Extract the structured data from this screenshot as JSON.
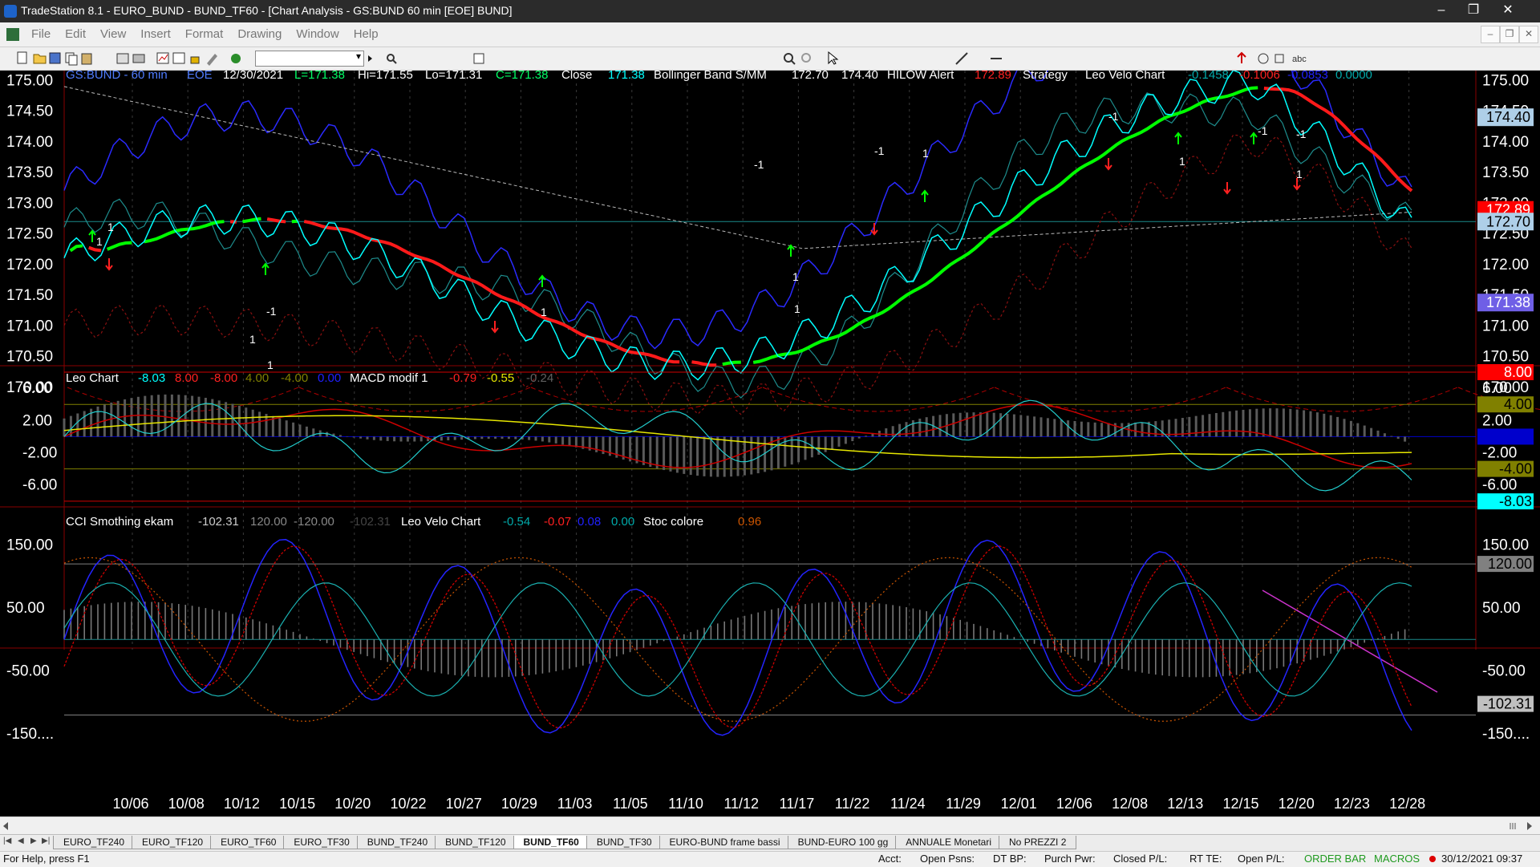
{
  "window": {
    "title": "TradeStation 8.1 - EURO_BUND - BUND_TF60 - [Chart Analysis - GS:BUND  60 min  [EOE] BUND]",
    "minimize": "–",
    "maximize": "❐",
    "close": "✕"
  },
  "menu": [
    "File",
    "Edit",
    "View",
    "Insert",
    "Format",
    "Drawing",
    "Window",
    "Help"
  ],
  "mdi_buttons": [
    "–",
    "❐",
    "✕"
  ],
  "toolbar": {
    "combo_value": "",
    "text_tool": "abc"
  },
  "panel1": {
    "symbol": "GS:BUND - 60 min",
    "session": "EOE",
    "date": "12/30/2021",
    "last": "L=171.38",
    "hi": "Hi=171.55",
    "lo": "Lo=171.31",
    "close": "C=171.38",
    "close_label": "Close",
    "close_value": "171.38",
    "bb_label": "Bollinger Band S/MM",
    "bb_v1": "172.70",
    "bb_v2": "174.40",
    "hilow_label": "HILOW Alert",
    "hilow_value": "172.89",
    "strategy_label": "Strategy",
    "velo_label": "Leo Velo Chart",
    "velo_v1": "-0.1458",
    "velo_v2": "-0.1006",
    "velo_v3": "-0.0853",
    "velo_v4": "0.0000",
    "y_ticks": [
      "175.00",
      "174.50",
      "174.00",
      "173.50",
      "173.00",
      "172.50",
      "172.00",
      "171.50",
      "171.00",
      "170.50",
      "170.00"
    ],
    "price_tags": [
      {
        "text": "174.40",
        "bg": "#aecfe8",
        "fg": "#000"
      },
      {
        "text": "172.89",
        "bg": "#ff0000",
        "fg": "#fff"
      },
      {
        "text": "172.70",
        "bg": "#aecfe8",
        "fg": "#000"
      },
      {
        "text": "171.38",
        "bg": "#6f5fe6",
        "fg": "#fff"
      }
    ],
    "signals": [
      "1",
      "1",
      "1",
      "1",
      "-1",
      "1",
      "-1",
      "1",
      "-1",
      "1",
      "-1",
      "1",
      "1",
      "-1",
      "1",
      "-1"
    ]
  },
  "panel2": {
    "leo_label": "Leo Chart",
    "leo_v1": "-8.03",
    "leo_v2": "8.00",
    "leo_v3": "-8.00",
    "leo_v4": "4.00",
    "leo_v5": "-4.00",
    "leo_v6": "0.00",
    "macd_label": "MACD modif 1",
    "macd_v1": "-0.79",
    "macd_v2": "-0.55",
    "macd_v3": "-0.24",
    "y_ticks": [
      "6.00",
      "2.00",
      "-2.00",
      "-6.00"
    ],
    "tags": [
      {
        "text": "8.00",
        "bg": "#ff0000",
        "fg": "#fff"
      },
      {
        "text": "4.00",
        "bg": "#808000",
        "fg": "#000"
      },
      {
        "text": "0.00",
        "bg": "#0000cc",
        "fg": "#0000cc"
      },
      {
        "text": "-4.00",
        "bg": "#808000",
        "fg": "#000"
      },
      {
        "text": "-8.03",
        "bg": "#00ffff",
        "fg": "#000"
      }
    ]
  },
  "panel3": {
    "cci_label": "CCI Smothing ekam",
    "cci_v1": "-102.31",
    "cci_v2": "120.00",
    "cci_v3": "-120.00",
    "cci_v4": "-102.31",
    "velo_label": "Leo Velo Chart",
    "velo_v1": "-0.54",
    "velo_v2": "-0.07",
    "velo_v3": "0.08",
    "velo_v4": "0.00",
    "stoc_label": "Stoc colore",
    "stoc_v1": "0.96",
    "y_ticks": [
      "150.00",
      "50.00",
      "-50.00",
      "-150...."
    ],
    "tags": [
      {
        "text": "120.00",
        "bg": "#808080",
        "fg": "#000"
      },
      {
        "text": "-102.31",
        "bg": "#c0c0c0",
        "fg": "#000"
      }
    ]
  },
  "x_axis": [
    "10/06",
    "10/08",
    "10/12",
    "10/15",
    "10/20",
    "10/22",
    "10/27",
    "10/29",
    "11/03",
    "11/05",
    "11/10",
    "11/12",
    "11/17",
    "11/22",
    "11/24",
    "11/29",
    "12/01",
    "12/06",
    "12/08",
    "12/13",
    "12/15",
    "12/20",
    "12/23",
    "12/28"
  ],
  "tabs": [
    "EURO_TF240",
    "EURO_TF120",
    "EURO_TF60",
    "EURO_TF30",
    "BUND_TF240",
    "BUND_TF120",
    "BUND_TF60",
    "BUND_TF30",
    "EURO-BUND frame bassi",
    "BUND-EURO 100 gg",
    "ANNUALE Monetari",
    "No PREZZI 2"
  ],
  "active_tab": "BUND_TF60",
  "statusbar": {
    "help": "For Help, press F1",
    "acct": "Acct:",
    "open_psns": "Open Psns:",
    "dt_bp": "DT BP:",
    "purch_pwr": "Purch Pwr:",
    "closed_pl": "Closed P/L:",
    "rt_te": "RT TE:",
    "open_pl": "Open P/L:",
    "order_bar": "ORDER BAR",
    "macros": "MACROS",
    "datetime": "30/12/2021 09:37"
  },
  "colors": {
    "up": "#00ff00",
    "down": "#ff0000",
    "price": "#00ffff",
    "boll": "#3a3aff",
    "grid": "#505050"
  }
}
